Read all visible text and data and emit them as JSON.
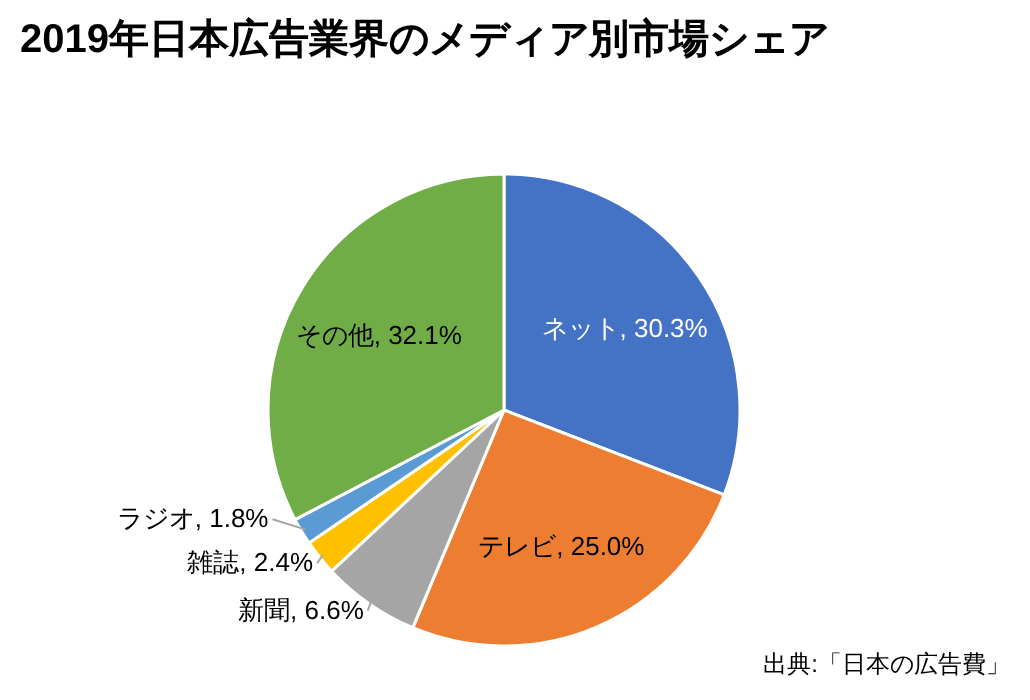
{
  "chart_data": {
    "type": "pie",
    "title": "2019年日本広告業界のメディア別市場シェア",
    "categories": [
      "ネット",
      "テレビ",
      "新聞",
      "雑誌",
      "ラジオ",
      "その他"
    ],
    "values": [
      30.3,
      25.0,
      6.6,
      2.4,
      1.8,
      32.1
    ],
    "colors": [
      "#4472c4",
      "#ed7d31",
      "#a5a5a5",
      "#ffc000",
      "#5b9bd5",
      "#70ad47"
    ],
    "value_labels": [
      "30.3%",
      "25.0%",
      "6.6%",
      "2.4%",
      "1.8%",
      "32.1%"
    ],
    "annotations": [
      "出典:「日本の広告費」"
    ]
  }
}
